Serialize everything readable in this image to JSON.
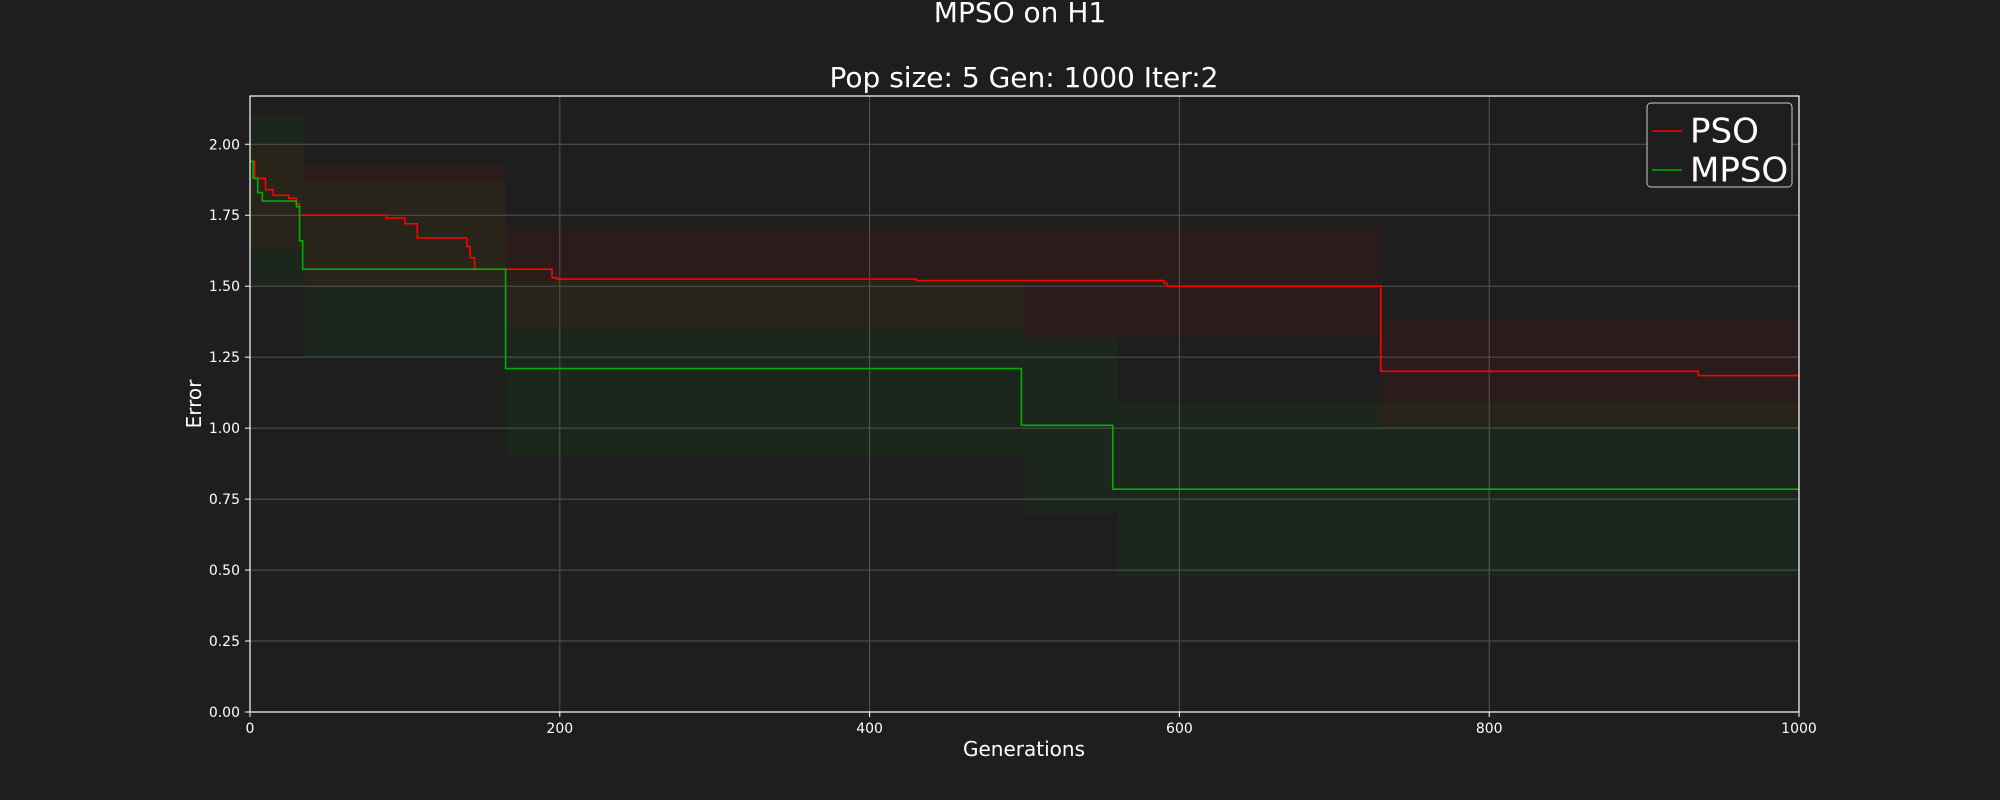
{
  "chart_data": {
    "type": "line",
    "title": "MPSO on H1",
    "subtitle": "Pop size: 5  Gen: 1000  Iter:2",
    "xlabel": "Generations",
    "ylabel": "Error",
    "xlim": [
      0,
      1000
    ],
    "ylim": [
      0,
      2.17
    ],
    "x_ticks": [
      "0",
      "200",
      "400",
      "600",
      "800",
      "1000"
    ],
    "y_ticks": [
      "0.00",
      "0.25",
      "0.50",
      "0.75",
      "1.00",
      "1.25",
      "1.50",
      "1.75",
      "2.00"
    ],
    "grid": true,
    "legend_position": "top-right",
    "background": "#1e1e1e",
    "series": [
      {
        "name": "PSO",
        "color": "#ff0000",
        "x": [
          0,
          3,
          3,
          10,
          10,
          15,
          15,
          25,
          25,
          30,
          30,
          32,
          32,
          88,
          88,
          100,
          100,
          108,
          108,
          140,
          140,
          142,
          142,
          145,
          145,
          195,
          195,
          198,
          198,
          430,
          430,
          590,
          590,
          592,
          592,
          730,
          730,
          732,
          732,
          935,
          935,
          940,
          940,
          1000
        ],
        "y": [
          1.94,
          1.94,
          1.88,
          1.88,
          1.84,
          1.84,
          1.82,
          1.82,
          1.81,
          1.81,
          1.79,
          1.79,
          1.75,
          1.75,
          1.74,
          1.74,
          1.72,
          1.72,
          1.67,
          1.67,
          1.64,
          1.64,
          1.6,
          1.6,
          1.56,
          1.56,
          1.53,
          1.53,
          1.525,
          1.525,
          1.52,
          1.52,
          1.51,
          1.51,
          1.5,
          1.5,
          1.2,
          1.2,
          1.2,
          1.2,
          1.185,
          1.185,
          1.185,
          1.185
        ],
        "bands": [
          {
            "x": [
              0,
              35
            ],
            "y": [
              1.63,
              2.0
            ]
          },
          {
            "x": [
              35,
              165
            ],
            "y": [
              1.5,
              1.93
            ]
          },
          {
            "x": [
              165,
              500
            ],
            "y": [
              1.35,
              1.71
            ]
          },
          {
            "x": [
              500,
              730
            ],
            "y": [
              1.32,
              1.7
            ]
          },
          {
            "x": [
              730,
              1000
            ],
            "y": [
              1.0,
              1.38
            ]
          }
        ]
      },
      {
        "name": "MPSO",
        "color": "#00b000",
        "x": [
          0,
          2,
          2,
          5,
          5,
          8,
          8,
          30,
          30,
          32,
          32,
          34,
          34,
          163,
          163,
          165,
          165,
          498,
          498,
          500,
          500,
          557,
          557,
          559,
          559,
          1000
        ],
        "y": [
          1.94,
          1.94,
          1.88,
          1.88,
          1.83,
          1.83,
          1.8,
          1.8,
          1.78,
          1.78,
          1.66,
          1.66,
          1.56,
          1.56,
          1.56,
          1.56,
          1.21,
          1.21,
          1.01,
          1.01,
          1.01,
          1.01,
          0.785,
          0.785,
          0.785,
          0.785
        ],
        "bands": [
          {
            "x": [
              0,
              35
            ],
            "y": [
              1.5,
              2.1
            ]
          },
          {
            "x": [
              35,
              165
            ],
            "y": [
              1.25,
              1.87
            ]
          },
          {
            "x": [
              165,
              500
            ],
            "y": [
              0.9,
              1.52
            ]
          },
          {
            "x": [
              500,
              560
            ],
            "y": [
              0.7,
              1.32
            ]
          },
          {
            "x": [
              560,
              1000
            ],
            "y": [
              0.48,
              1.09
            ]
          }
        ]
      }
    ]
  }
}
